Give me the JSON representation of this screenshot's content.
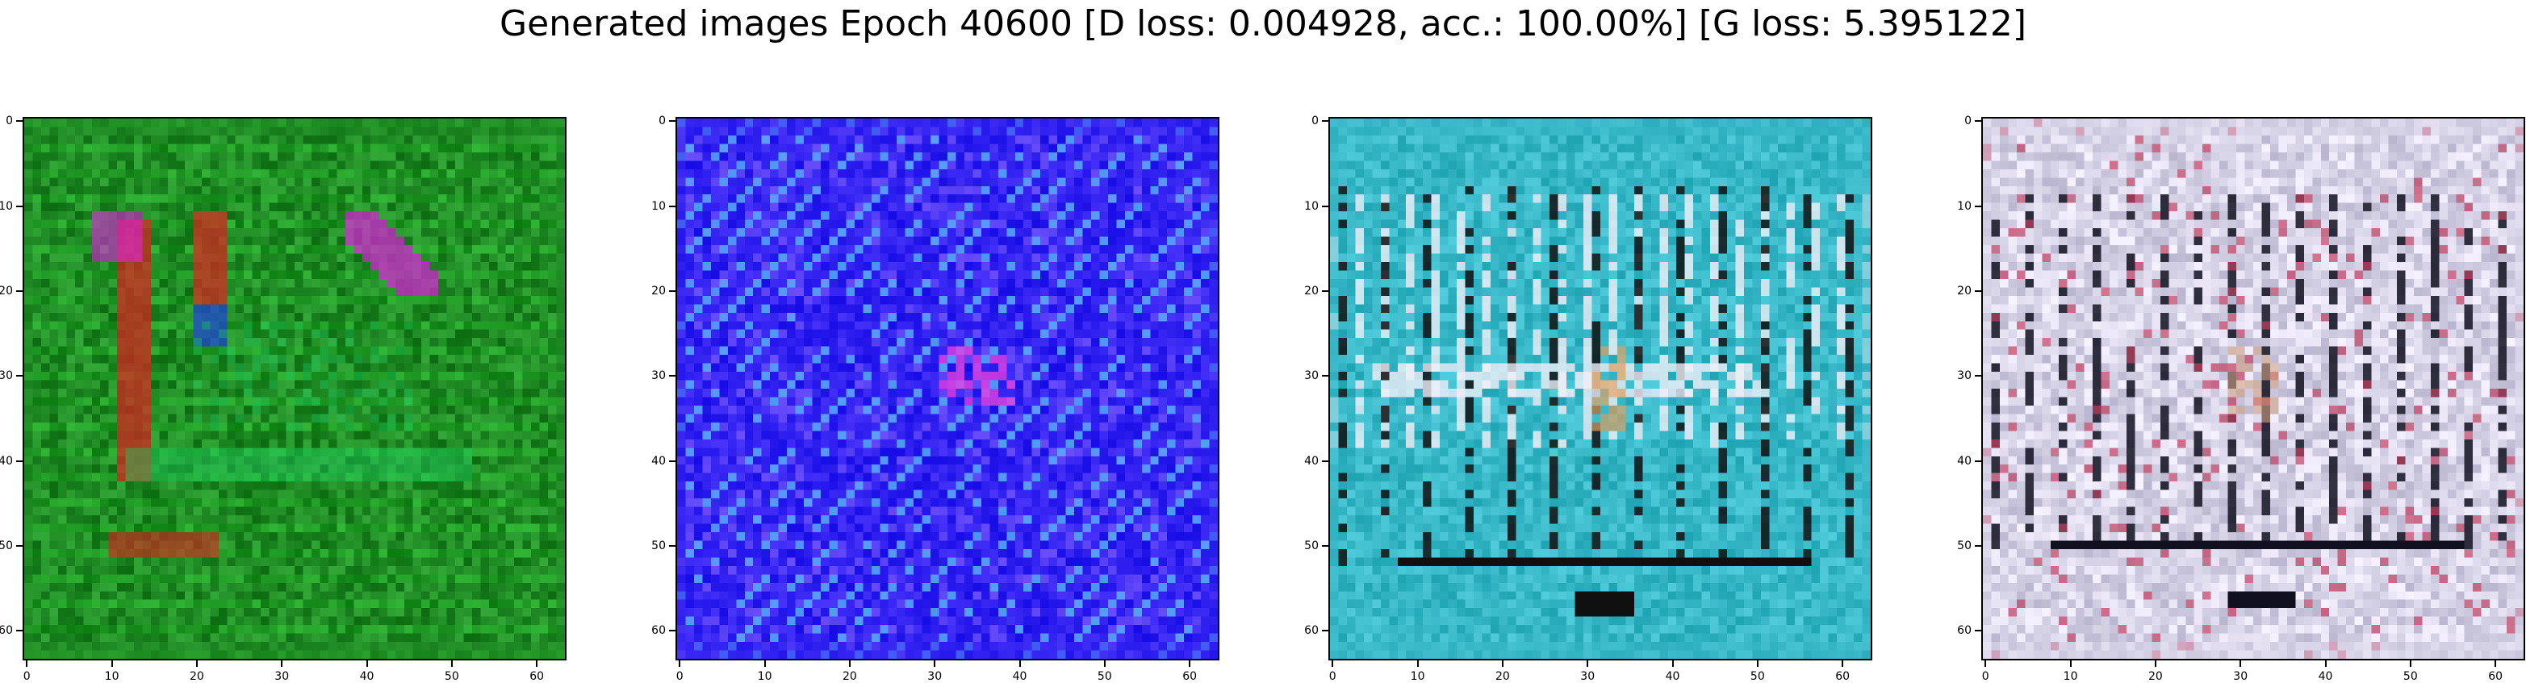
{
  "figure": {
    "title": "Generated images Epoch 40600 [D loss: 0.004928, acc.: 100.00%] [G loss: 5.395122]"
  },
  "axes": {
    "xticks": [
      "0",
      "10",
      "20",
      "30",
      "40",
      "50",
      "60"
    ],
    "yticks": [
      "0",
      "10",
      "20",
      "30",
      "40",
      "50",
      "60"
    ],
    "xlim": [
      0,
      64
    ],
    "ylim": [
      64,
      0
    ]
  },
  "panels": [
    {
      "id": "sample-1",
      "dominant_color": "#1f8a24",
      "accent_colors": [
        "#e02020",
        "#e020e0",
        "#2040e0",
        "#20c860"
      ]
    },
    {
      "id": "sample-2",
      "dominant_color": "#3020f0",
      "accent_colors": [
        "#60c0ff",
        "#e040e0",
        "#8060ff"
      ]
    },
    {
      "id": "sample-3",
      "dominant_color": "#38b8c8",
      "accent_colors": [
        "#f0f0f8",
        "#101010",
        "#e0a060"
      ]
    },
    {
      "id": "sample-4",
      "dominant_color": "#d8d4e8",
      "accent_colors": [
        "#101020",
        "#c04060",
        "#d0a080"
      ]
    }
  ]
}
